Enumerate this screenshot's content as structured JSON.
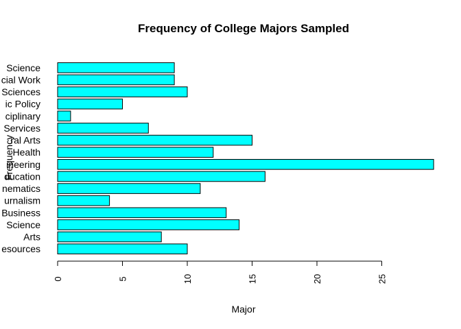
{
  "chart_data": {
    "type": "bar",
    "orientation": "horizontal",
    "title": "Frequency of College Majors Sampled",
    "xlabel": "Major",
    "ylabel": "Frequency",
    "categories": [
      "esources",
      "Arts",
      "Science",
      "Business",
      "urnalism",
      "nematics",
      "ducation",
      "ineering",
      "Health",
      "ral Arts",
      "Services",
      "ciplinary",
      "ic Policy",
      "Sciences",
      "cial Work",
      "Science"
    ],
    "values": [
      10,
      8,
      14,
      13,
      4,
      11,
      16,
      29,
      12,
      15,
      7,
      1,
      5,
      10,
      9,
      9
    ],
    "xlim": [
      0,
      29
    ],
    "xticks": [
      0,
      5,
      10,
      15,
      20,
      25
    ],
    "bar_color": "#00FFFF",
    "bar_border_color": "#000000",
    "grid": false,
    "legend": "none"
  }
}
